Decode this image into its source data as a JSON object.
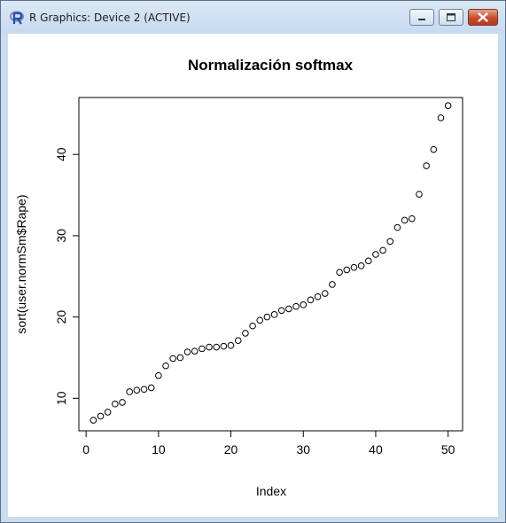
{
  "window": {
    "title": "R Graphics: Device 2 (ACTIVE)",
    "app_icon": "r-logo-icon",
    "buttons": [
      "minimize-icon",
      "maximize-icon",
      "close-icon"
    ]
  },
  "chart_data": {
    "type": "scatter",
    "title": "Normalización softmax",
    "xlabel": "Index",
    "ylabel": "sort(user.normSm$Rape)",
    "xlim": [
      -1.0,
      52.0
    ],
    "ylim": [
      6.0,
      47.0
    ],
    "xticks": [
      0,
      10,
      20,
      30,
      40,
      50
    ],
    "yticks": [
      10,
      20,
      30,
      40
    ],
    "marker": "open-circle",
    "grid": false,
    "x": [
      1,
      2,
      3,
      4,
      5,
      6,
      7,
      8,
      9,
      10,
      11,
      12,
      13,
      14,
      15,
      16,
      17,
      18,
      19,
      20,
      21,
      22,
      23,
      24,
      25,
      26,
      27,
      28,
      29,
      30,
      31,
      32,
      33,
      34,
      35,
      36,
      37,
      38,
      39,
      40,
      41,
      42,
      43,
      44,
      45,
      46,
      47,
      48,
      49,
      50
    ],
    "y": [
      7.3,
      7.8,
      8.3,
      9.3,
      9.5,
      10.8,
      11.0,
      11.1,
      11.3,
      12.8,
      14.0,
      14.9,
      15.0,
      15.7,
      15.8,
      16.1,
      16.3,
      16.3,
      16.4,
      16.5,
      17.1,
      18.0,
      18.9,
      19.6,
      20.0,
      20.3,
      20.8,
      21.0,
      21.3,
      21.5,
      22.1,
      22.5,
      22.9,
      24.0,
      25.5,
      25.8,
      26.1,
      26.3,
      26.9,
      27.7,
      28.2,
      29.3,
      31.0,
      31.9,
      32.1,
      35.1,
      38.6,
      40.6,
      44.5,
      46.0
    ]
  }
}
